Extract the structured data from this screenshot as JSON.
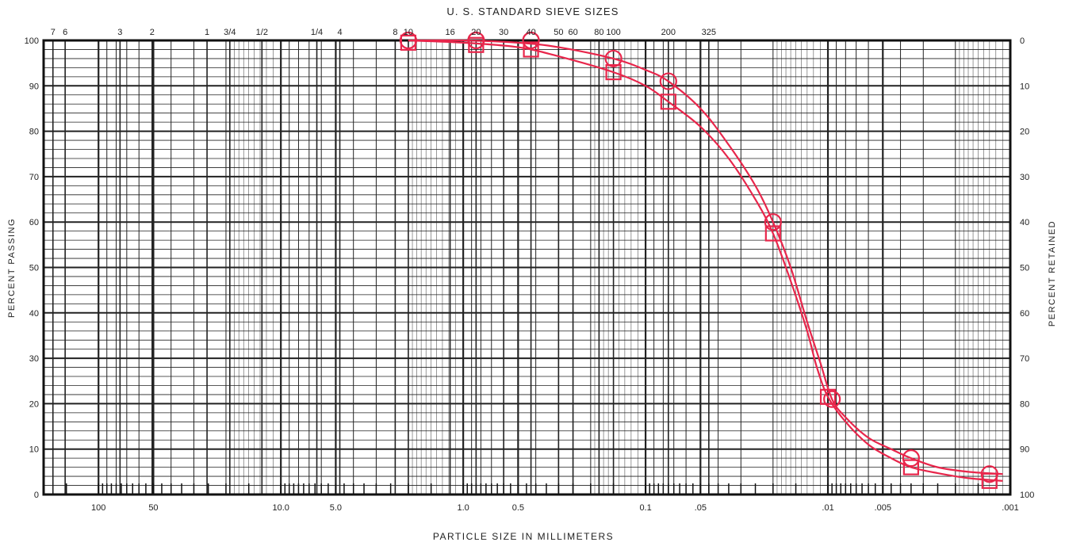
{
  "chart_data": {
    "type": "line",
    "title": "U. S. STANDARD SIEVE SIZES",
    "xlabel": "PARTICLE SIZE IN MILLIMETERS",
    "ylabel": "PERCENT PASSING",
    "ylabel_right": "PERCENT RETAINED",
    "x_scale": "log",
    "x_reversed": true,
    "xlim": [
      0.001,
      200
    ],
    "ylim": [
      0,
      100
    ],
    "grid": true,
    "y_ticks": [
      "0",
      "10",
      "20",
      "30",
      "40",
      "50",
      "60",
      "70",
      "80",
      "90",
      "100"
    ],
    "y_right_ticks": [
      "100",
      "90",
      "80",
      "70",
      "60",
      "50",
      "40",
      "30",
      "20",
      "10",
      "0"
    ],
    "x_ticks": [
      {
        "x": 100,
        "label": "100"
      },
      {
        "x": 50,
        "label": "50"
      },
      {
        "x": 10,
        "label": "10.0"
      },
      {
        "x": 5,
        "label": "5.0"
      },
      {
        "x": 1,
        "label": "1.0"
      },
      {
        "x": 0.5,
        "label": "0.5"
      },
      {
        "x": 0.1,
        "label": "0.1"
      },
      {
        "x": 0.05,
        "label": ".05"
      },
      {
        "x": 0.01,
        "label": ".01"
      },
      {
        "x": 0.005,
        "label": ".005"
      },
      {
        "x": 0.001,
        "label": ".001"
      }
    ],
    "sieve_ticks": [
      {
        "x": 177.8,
        "label": "7"
      },
      {
        "x": 152.4,
        "label": "6"
      },
      {
        "x": 76.2,
        "label": "3"
      },
      {
        "x": 50.8,
        "label": "2"
      },
      {
        "x": 25.4,
        "label": "1"
      },
      {
        "x": 19.05,
        "label": "3/4"
      },
      {
        "x": 12.7,
        "label": "1/2"
      },
      {
        "x": 6.35,
        "label": "1/4"
      },
      {
        "x": 4.75,
        "label": "4"
      },
      {
        "x": 2.36,
        "label": "8"
      },
      {
        "x": 2.0,
        "label": "10"
      },
      {
        "x": 1.18,
        "label": "16"
      },
      {
        "x": 0.85,
        "label": "20"
      },
      {
        "x": 0.6,
        "label": "30"
      },
      {
        "x": 0.425,
        "label": "40"
      },
      {
        "x": 0.3,
        "label": "50"
      },
      {
        "x": 0.25,
        "label": "60"
      },
      {
        "x": 0.18,
        "label": "80"
      },
      {
        "x": 0.15,
        "label": "100"
      },
      {
        "x": 0.075,
        "label": "200"
      },
      {
        "x": 0.045,
        "label": "325"
      }
    ],
    "series": [
      {
        "marker": "circle",
        "color": "#e8264b",
        "points": [
          [
            2.0,
            100
          ],
          [
            0.85,
            100
          ],
          [
            0.425,
            100
          ],
          [
            0.15,
            96
          ],
          [
            0.075,
            91
          ],
          [
            0.02,
            60
          ],
          [
            0.0095,
            21
          ],
          [
            0.0035,
            8
          ],
          [
            0.0013,
            4.5
          ]
        ],
        "curve": [
          [
            2.0,
            100
          ],
          [
            1.0,
            100
          ],
          [
            0.5,
            99.5
          ],
          [
            0.3,
            98.5
          ],
          [
            0.15,
            96
          ],
          [
            0.1,
            93.5
          ],
          [
            0.075,
            91
          ],
          [
            0.05,
            85
          ],
          [
            0.035,
            77
          ],
          [
            0.025,
            68
          ],
          [
            0.02,
            60
          ],
          [
            0.016,
            50
          ],
          [
            0.013,
            38
          ],
          [
            0.011,
            29
          ],
          [
            0.0095,
            21
          ],
          [
            0.008,
            17
          ],
          [
            0.006,
            12.5
          ],
          [
            0.0045,
            10
          ],
          [
            0.0035,
            8
          ],
          [
            0.0025,
            6
          ],
          [
            0.0017,
            5
          ],
          [
            0.0011,
            4.5
          ]
        ]
      },
      {
        "marker": "square",
        "color": "#e8264b",
        "points": [
          [
            2.0,
            99.5
          ],
          [
            0.85,
            99
          ],
          [
            0.425,
            98
          ],
          [
            0.15,
            93
          ],
          [
            0.075,
            86.5
          ],
          [
            0.02,
            57.5
          ],
          [
            0.01,
            21.5
          ],
          [
            0.0035,
            6
          ],
          [
            0.0013,
            3
          ]
        ],
        "curve": [
          [
            2.0,
            100
          ],
          [
            1.0,
            99.5
          ],
          [
            0.5,
            98.5
          ],
          [
            0.3,
            96.5
          ],
          [
            0.15,
            93
          ],
          [
            0.1,
            90
          ],
          [
            0.075,
            86.5
          ],
          [
            0.05,
            81
          ],
          [
            0.035,
            74
          ],
          [
            0.025,
            65
          ],
          [
            0.02,
            57.5
          ],
          [
            0.016,
            47
          ],
          [
            0.013,
            36
          ],
          [
            0.0115,
            28
          ],
          [
            0.01,
            21.5
          ],
          [
            0.008,
            16
          ],
          [
            0.006,
            11
          ],
          [
            0.0045,
            8
          ],
          [
            0.0035,
            6
          ],
          [
            0.0025,
            4.7
          ],
          [
            0.0017,
            3.6
          ],
          [
            0.0011,
            3
          ]
        ]
      }
    ]
  }
}
